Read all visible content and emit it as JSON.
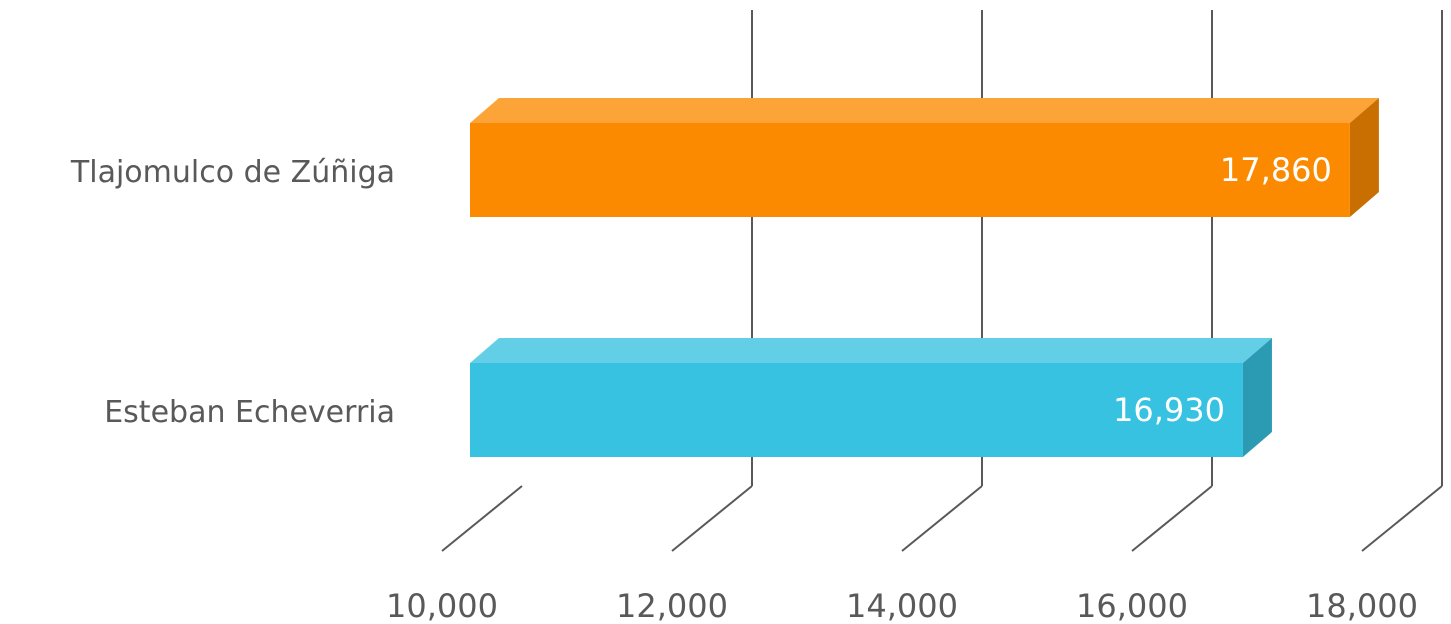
{
  "chart_data": {
    "type": "bar",
    "orientation": "horizontal",
    "style": "3d",
    "categories": [
      "Tlajomulco de Zúñiga",
      "Esteban Echeverria"
    ],
    "values": [
      17860,
      16930
    ],
    "value_labels": [
      "17,860",
      "16,930"
    ],
    "colors": [
      "#FB8A00",
      "#36C2E0"
    ],
    "xlim": [
      10000,
      18000
    ],
    "xticks": [
      10000,
      12000,
      14000,
      16000,
      18000
    ],
    "xtick_labels": [
      "10,000",
      "12,000",
      "14,000",
      "16,000",
      "18,000"
    ],
    "grid": true,
    "legend": false,
    "title": "",
    "xlabel": "",
    "ylabel": ""
  }
}
